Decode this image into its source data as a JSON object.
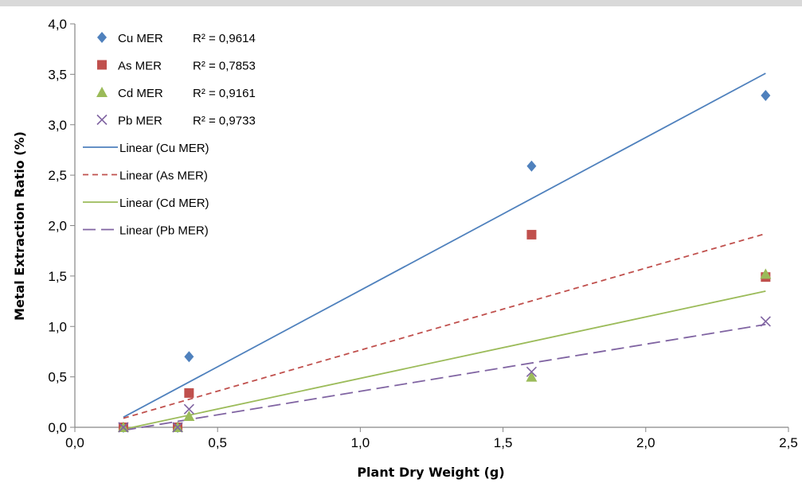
{
  "chart_data": {
    "type": "scatter",
    "xlabel": "Plant Dry Weight (g)",
    "ylabel": "Metal Extraction Ratio (%)",
    "xlim": [
      0,
      2.5
    ],
    "ylim": [
      0,
      4
    ],
    "x_ticks": [
      "0,0",
      "0,5",
      "1,0",
      "1,5",
      "2,0",
      "2,5"
    ],
    "y_ticks": [
      "0,0",
      "0,5",
      "1,0",
      "1,5",
      "2,0",
      "2,5",
      "3,0",
      "3,5",
      "4,0"
    ],
    "grid": false,
    "legend_position": "top-left",
    "series": [
      {
        "name": "Cu MER",
        "r2": "R² = 0,9614",
        "marker": "diamond",
        "color": "#4f81bd",
        "x": [
          0.17,
          0.36,
          0.4,
          1.6,
          2.42
        ],
        "y": [
          0.0,
          0.0,
          0.7,
          2.59,
          3.29
        ],
        "trend_name": "Linear (Cu MER)",
        "trend_dash": "solid",
        "trend": [
          [
            0.17,
            0.1
          ],
          [
            2.42,
            3.51
          ]
        ]
      },
      {
        "name": "As MER",
        "r2": "R² = 0,7853",
        "marker": "square",
        "color": "#c0504d",
        "x": [
          0.17,
          0.36,
          0.4,
          1.6,
          2.42
        ],
        "y": [
          0.0,
          0.0,
          0.34,
          1.91,
          1.49
        ],
        "trend_name": "Linear (As MER)",
        "trend_dash": "short-dash",
        "trend": [
          [
            0.17,
            0.09
          ],
          [
            2.42,
            1.92
          ]
        ]
      },
      {
        "name": "Cd MER",
        "r2": "R² = 0,9161",
        "marker": "triangle",
        "color": "#9bbb59",
        "x": [
          0.17,
          0.36,
          0.4,
          1.6,
          2.42
        ],
        "y": [
          0.0,
          0.0,
          0.11,
          0.5,
          1.52
        ],
        "trend_name": "Linear (Cd MER)",
        "trend_dash": "solid",
        "trend": [
          [
            0.17,
            -0.02
          ],
          [
            2.42,
            1.35
          ]
        ]
      },
      {
        "name": "Pb MER",
        "r2": "R² = 0,9733",
        "marker": "x",
        "color": "#8064a2",
        "x": [
          0.17,
          0.36,
          0.4,
          1.6,
          2.42
        ],
        "y": [
          0.0,
          0.0,
          0.18,
          0.55,
          1.05
        ],
        "trend_name": "Linear (Pb MER)",
        "trend_dash": "long-dash",
        "trend": [
          [
            0.17,
            -0.03
          ],
          [
            2.42,
            1.02
          ]
        ]
      }
    ]
  }
}
